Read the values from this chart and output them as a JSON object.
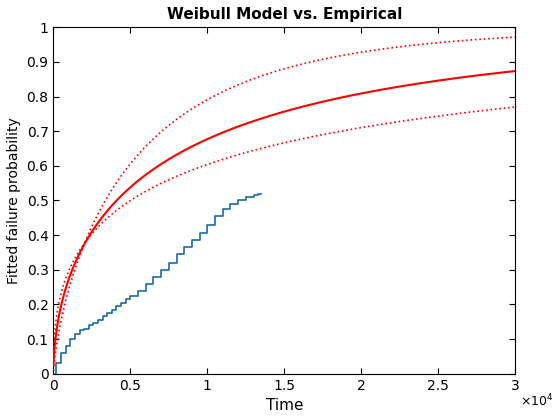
{
  "title": "Weibull Model vs. Empirical",
  "xlabel": "Time",
  "ylabel": "Fitted failure probability",
  "xlim": [
    0,
    30000
  ],
  "ylim": [
    0,
    1
  ],
  "weibull_shape": 0.55,
  "weibull_scale": 8000,
  "upper_shape": 0.75,
  "upper_scale": 5500,
  "lower_shape": 0.42,
  "lower_scale": 12000,
  "empirical_x": [
    200,
    500,
    800,
    1100,
    1400,
    1700,
    2000,
    2300,
    2600,
    2900,
    3200,
    3500,
    3800,
    4100,
    4400,
    4700,
    5000,
    5500,
    6000,
    6500,
    7000,
    7500,
    8000,
    8500,
    9000,
    9500,
    10000,
    10500,
    11000,
    11500,
    12000,
    12500,
    13000,
    13300,
    13500
  ],
  "empirical_y": [
    0.03,
    0.06,
    0.08,
    0.1,
    0.115,
    0.125,
    0.13,
    0.14,
    0.145,
    0.155,
    0.165,
    0.175,
    0.185,
    0.195,
    0.205,
    0.215,
    0.225,
    0.24,
    0.26,
    0.28,
    0.3,
    0.32,
    0.345,
    0.365,
    0.385,
    0.405,
    0.43,
    0.455,
    0.475,
    0.49,
    0.5,
    0.51,
    0.515,
    0.52,
    0.52
  ],
  "weibull_color": "#FF0000",
  "ci_color": "#FF0000",
  "empirical_color": "#1B6BA8",
  "line_width": 1.5,
  "ci_linewidth": 1.2,
  "empirical_linewidth": 1.2,
  "xtick_labels": [
    "0",
    "0.5",
    "1",
    "1.5",
    "2",
    "2.5",
    "3"
  ],
  "xtick_positions": [
    0,
    5000,
    10000,
    15000,
    20000,
    25000,
    30000
  ],
  "ytick_labels": [
    "0",
    "0.1",
    "0.2",
    "0.3",
    "0.4",
    "0.5",
    "0.6",
    "0.7",
    "0.8",
    "0.9",
    "1"
  ],
  "ytick_positions": [
    0,
    0.1,
    0.2,
    0.3,
    0.4,
    0.5,
    0.6,
    0.7,
    0.8,
    0.9,
    1.0
  ],
  "background_color": "#ffffff"
}
